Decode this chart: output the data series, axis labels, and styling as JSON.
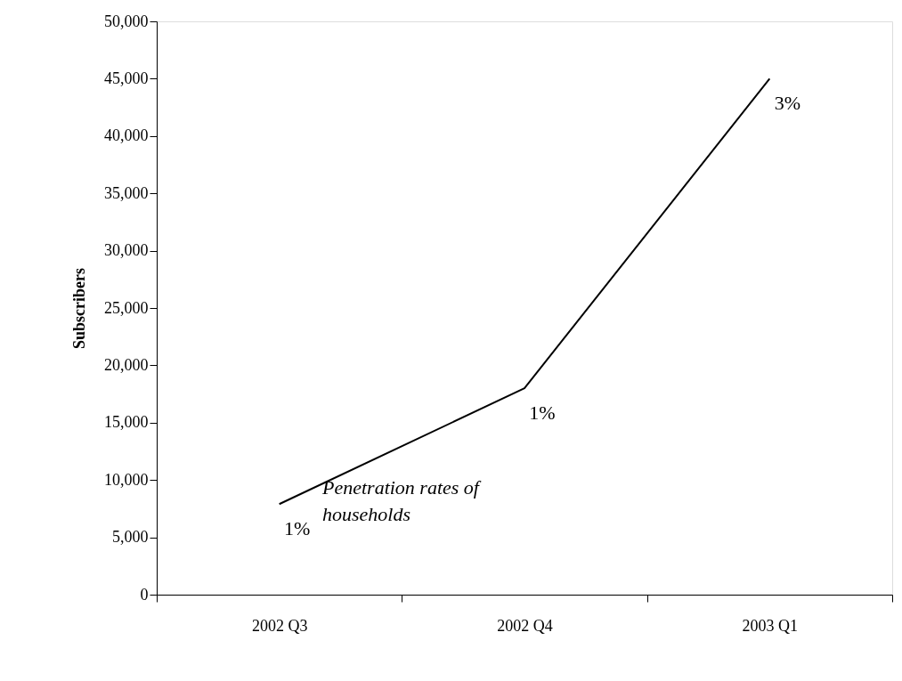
{
  "chart_data": {
    "type": "line",
    "ylabel": "Subscribers",
    "categories": [
      "2002 Q3",
      "2002 Q4",
      "2003 Q1"
    ],
    "series": [
      {
        "color": "#000000",
        "values": [
          7900,
          18000,
          45000
        ]
      }
    ],
    "ylim": [
      0,
      50000
    ],
    "yticks": [
      0,
      {
        "value": 5000,
        "label": "5,000"
      },
      {
        "value": 10000,
        "label": "10,000"
      },
      {
        "value": 15000,
        "label": "15,000"
      },
      {
        "value": 20000,
        "label": "20,000"
      },
      {
        "value": 25000,
        "label": "25,000"
      },
      {
        "value": 30000,
        "label": "30,000"
      },
      {
        "value": 35000,
        "label": "35,000"
      },
      {
        "value": 40000,
        "label": "40,000"
      },
      {
        "value": 45000,
        "label": "45,000"
      },
      {
        "value": 50000,
        "label": "50,000"
      }
    ],
    "annotations": [
      {
        "text": "1%",
        "x": "2002 Q3",
        "y": 7900
      },
      {
        "text": "1%",
        "x": "2002 Q4",
        "y": 18000
      },
      {
        "text": "3%",
        "x": "2003 Q1",
        "y": 45000
      },
      "Penetration rates of households"
    ],
    "grid": false,
    "marker": "none",
    "line_style": "solid"
  }
}
